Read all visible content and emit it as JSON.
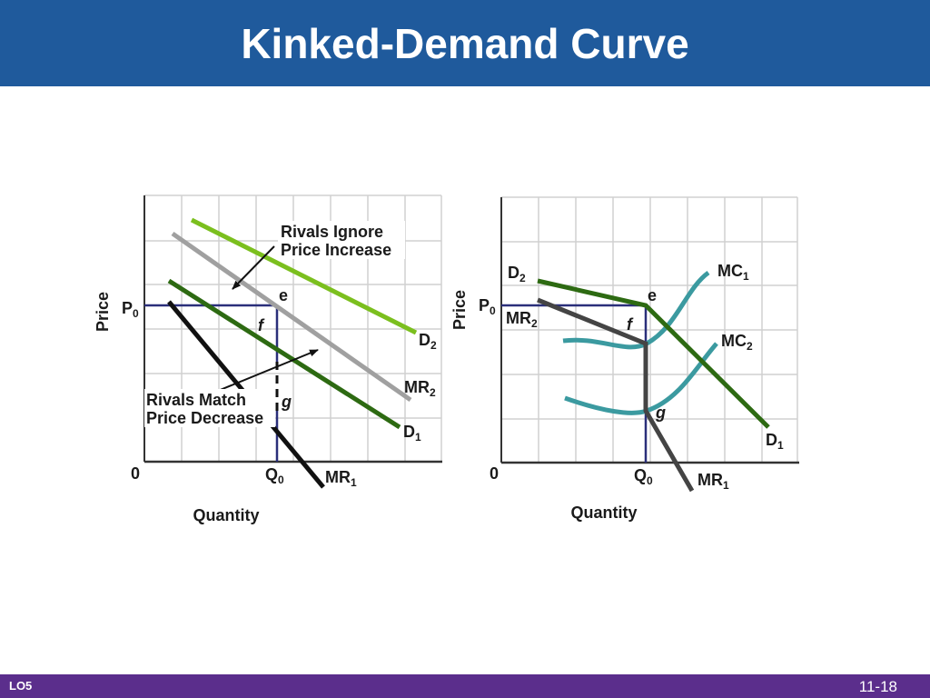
{
  "slide": {
    "title": "Kinked-Demand Curve",
    "footer_left": "LO5",
    "footer_right": "11-18"
  },
  "colors": {
    "title_bar": "#1f5a9c",
    "footer_bar": "#5b2e8c",
    "grid": "#d0d0d0",
    "dark_green": "#2d6a12",
    "light_green": "#7bbf1e",
    "gray": "#a0a0a0",
    "black": "#111111",
    "dark_gray": "#444444",
    "teal": "#3b9aa0",
    "navy": "#2a2f7a"
  },
  "left_panel": {
    "y_axis_label": "Price",
    "x_axis_label": "Quantity",
    "origin": "0",
    "p0": {
      "main": "P",
      "sub": "0"
    },
    "q0": {
      "main": "Q",
      "sub": "0"
    },
    "point_e": "e",
    "point_f": "f",
    "point_g": "g",
    "d1": {
      "main": "D",
      "sub": "1"
    },
    "d2": {
      "main": "D",
      "sub": "2"
    },
    "mr1": {
      "main": "MR",
      "sub": "1"
    },
    "mr2": {
      "main": "MR",
      "sub": "2"
    },
    "annotation_ignore": {
      "line1": "Rivals Ignore",
      "line2": "Price Increase"
    },
    "annotation_match": {
      "line1": "Rivals Match",
      "line2": "Price Decrease"
    }
  },
  "right_panel": {
    "y_axis_label": "Price",
    "x_axis_label": "Quantity",
    "origin": "0",
    "p0": {
      "main": "P",
      "sub": "0"
    },
    "q0": {
      "main": "Q",
      "sub": "0"
    },
    "point_e": "e",
    "point_f": "f",
    "point_g": "g",
    "d1": {
      "main": "D",
      "sub": "1"
    },
    "d2": {
      "main": "D",
      "sub": "2"
    },
    "mr1": {
      "main": "MR",
      "sub": "1"
    },
    "mr2": {
      "main": "MR",
      "sub": "2"
    },
    "mc1": {
      "main": "MC",
      "sub": "1"
    },
    "mc2": {
      "main": "MC",
      "sub": "2"
    }
  }
}
